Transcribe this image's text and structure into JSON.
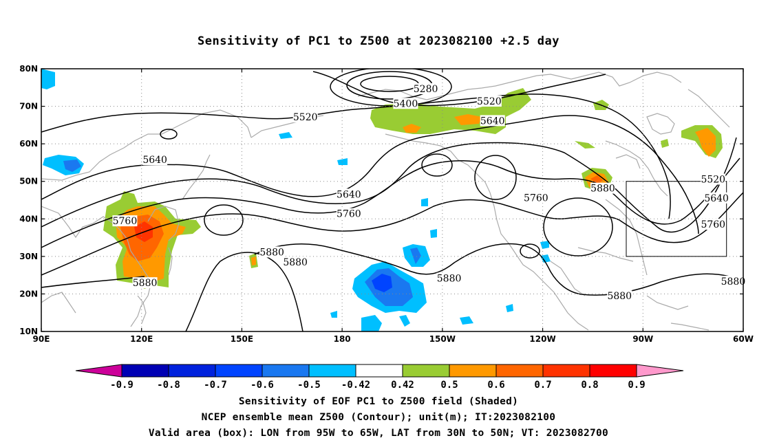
{
  "title": "Sensitivity of PC1 to Z500 at 2023082100 +2.5 day",
  "map": {
    "lon_range": [
      90,
      300
    ],
    "lat_range": [
      10,
      80
    ],
    "x_ticks": [
      {
        "lon": 90,
        "label": "90E"
      },
      {
        "lon": 120,
        "label": "120E"
      },
      {
        "lon": 150,
        "label": "150E"
      },
      {
        "lon": 180,
        "label": "180"
      },
      {
        "lon": 210,
        "label": "150W"
      },
      {
        "lon": 240,
        "label": "120W"
      },
      {
        "lon": 270,
        "label": "90W"
      },
      {
        "lon": 300,
        "label": "60W"
      }
    ],
    "y_ticks": [
      {
        "lat": 10,
        "label": "10N"
      },
      {
        "lat": 20,
        "label": "20N"
      },
      {
        "lat": 30,
        "label": "30N"
      },
      {
        "lat": 40,
        "label": "40N"
      },
      {
        "lat": 50,
        "label": "50N"
      },
      {
        "lat": 60,
        "label": "60N"
      },
      {
        "lat": 70,
        "label": "70N"
      },
      {
        "lat": 80,
        "label": "80N"
      }
    ],
    "grid": "dotted",
    "valid_box": {
      "lon": [
        265,
        295
      ],
      "lat": [
        30,
        50
      ]
    },
    "contour_labels": [
      {
        "text": "5280",
        "lon": 205,
        "lat": 74.5
      },
      {
        "text": "5400",
        "lon": 199,
        "lat": 70.6
      },
      {
        "text": "5520",
        "lon": 224,
        "lat": 71.2
      },
      {
        "text": "5520",
        "lon": 169,
        "lat": 67.0
      },
      {
        "text": "5640",
        "lon": 225,
        "lat": 66.0
      },
      {
        "text": "5640",
        "lon": 124,
        "lat": 55.6
      },
      {
        "text": "5640",
        "lon": 182,
        "lat": 46.4
      },
      {
        "text": "5760",
        "lon": 182,
        "lat": 41.2
      },
      {
        "text": "5760",
        "lon": 115,
        "lat": 39.3
      },
      {
        "text": "5760",
        "lon": 238,
        "lat": 45.5
      },
      {
        "text": "5880",
        "lon": 258,
        "lat": 48.0
      },
      {
        "text": "5520",
        "lon": 291,
        "lat": 50.4
      },
      {
        "text": "5640",
        "lon": 292,
        "lat": 45.4
      },
      {
        "text": "5760",
        "lon": 291,
        "lat": 38.4
      },
      {
        "text": "5880",
        "lon": 159,
        "lat": 31.0
      },
      {
        "text": "5880",
        "lon": 166,
        "lat": 28.3
      },
      {
        "text": "5880",
        "lon": 212,
        "lat": 24.0
      },
      {
        "text": "5880",
        "lon": 121,
        "lat": 22.8
      },
      {
        "text": "5880",
        "lon": 263,
        "lat": 19.3
      },
      {
        "text": "5880",
        "lon": 297,
        "lat": 23.2
      }
    ]
  },
  "colorbar": {
    "labels": [
      "-0.9",
      "-0.8",
      "-0.7",
      "-0.6",
      "-0.5",
      "-0.42",
      "0.42",
      "0.5",
      "0.6",
      "0.7",
      "0.8",
      "0.9"
    ],
    "colors": [
      "#cc0099",
      "#0000b4",
      "#0022dd",
      "#0044ff",
      "#1a78f0",
      "#00bfff",
      "#ffffff",
      "#99cc33",
      "#ff9900",
      "#ff6600",
      "#ff3300",
      "#ff0000",
      "#ff99cc"
    ]
  },
  "captions": {
    "line1": "Sensitivity of EOF PC1 to Z500 field (Shaded)",
    "line2": "NCEP ensemble mean Z500 (Contour); unit(m); IT:2023082100",
    "line3": "Valid area (box): LON from 95W to 65W, LAT from 30N to 50N; VT: 2023082700"
  }
}
